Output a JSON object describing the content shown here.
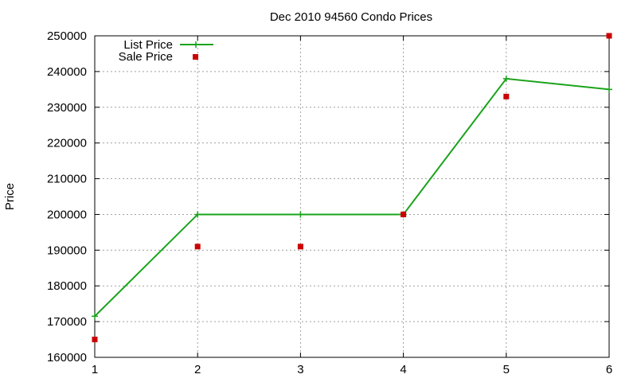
{
  "chart_data": {
    "type": "line",
    "title": "Dec 2010 94560 Condo Prices",
    "xlabel": "",
    "ylabel": "Price",
    "xlim": [
      1,
      6
    ],
    "ylim": [
      160000,
      250000
    ],
    "x_ticks": [
      "1",
      "2",
      "3",
      "4",
      "5",
      "6"
    ],
    "y_ticks": [
      "160000",
      "170000",
      "180000",
      "190000",
      "200000",
      "210000",
      "220000",
      "230000",
      "240000",
      "250000"
    ],
    "grid": true,
    "legend_position": "top-left",
    "series": [
      {
        "name": "List Price",
        "style": "line-with-plus-markers",
        "color": "#1aa31a",
        "x": [
          1,
          2,
          3,
          4,
          5,
          6
        ],
        "values": [
          171500,
          200000,
          200000,
          200000,
          238000,
          235000
        ]
      },
      {
        "name": "Sale Price",
        "style": "square-markers",
        "color": "#cc0000",
        "x": [
          1,
          2,
          3,
          4,
          5,
          6
        ],
        "values": [
          165000,
          191000,
          191000,
          200000,
          233000,
          250000
        ]
      }
    ]
  }
}
